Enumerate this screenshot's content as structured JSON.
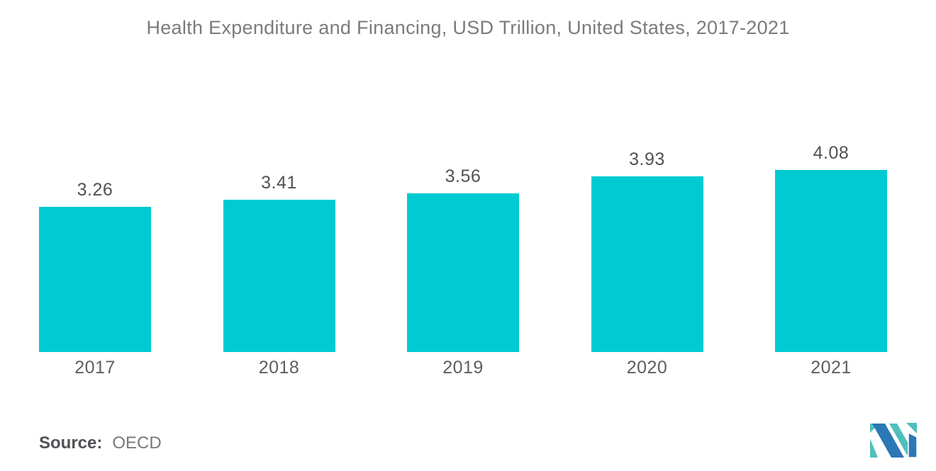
{
  "chart_data": {
    "type": "bar",
    "title": "Health Expenditure and Financing, USD Trillion, United States, 2017-2021",
    "categories": [
      "2017",
      "2018",
      "2019",
      "2020",
      "2021"
    ],
    "values": [
      3.26,
      3.41,
      3.56,
      3.93,
      4.08
    ],
    "value_labels": [
      "3.26",
      "3.41",
      "3.56",
      "3.93",
      "4.08"
    ],
    "xlabel": "",
    "ylabel": "",
    "ylim": [
      0,
      4.08
    ],
    "grid": false,
    "legend": "none",
    "bar_color": "#00cbd2"
  },
  "source": {
    "label": "Source:",
    "value": "OECD"
  },
  "logo": {
    "name": "mordor-intelligence-logo",
    "teal": "#50bfbc",
    "blue": "#2c77b5"
  },
  "colors": {
    "background": "#ffffff",
    "title_text": "#7b7b7b",
    "value_text": "#515155",
    "axis_text": "#5e5e60"
  }
}
